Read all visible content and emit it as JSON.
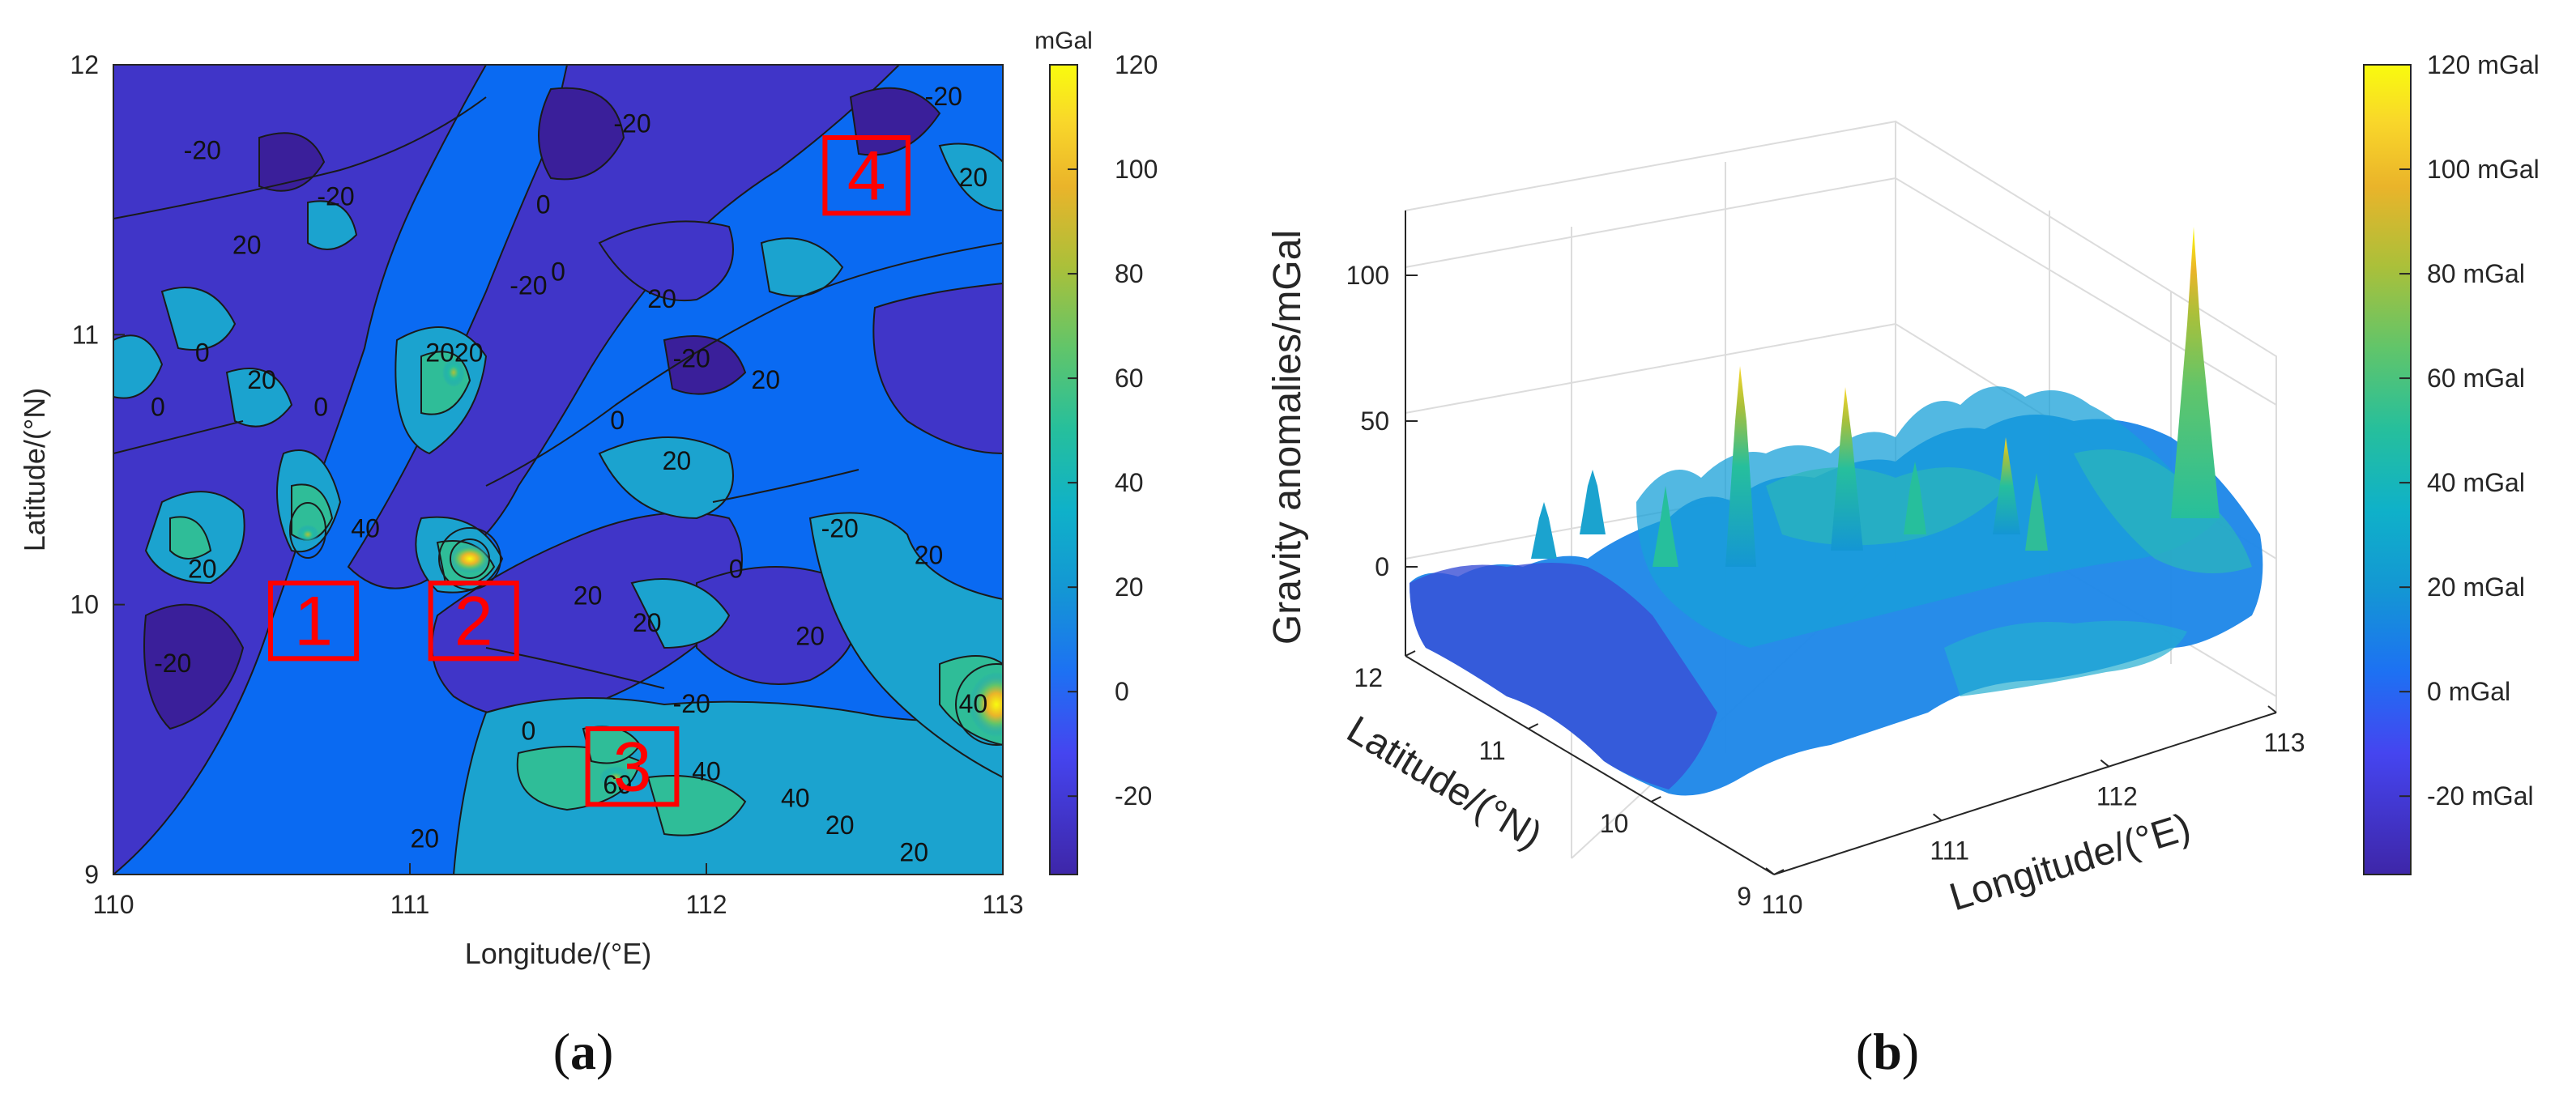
{
  "figure": {
    "caption_a": {
      "letter": "a"
    },
    "caption_b": {
      "letter": "b"
    }
  },
  "chart_data": [
    {
      "type": "heatmap",
      "subtype": "filled-contour",
      "xlabel": "Longitude/(°E)",
      "ylabel": "Latitude/(°N)",
      "xlim": [
        110,
        113
      ],
      "ylim": [
        9,
        12
      ],
      "xticks": [
        "110",
        "111",
        "112",
        "113"
      ],
      "yticks": [
        "9",
        "10",
        "11",
        "12"
      ],
      "colorbar": {
        "unit": "mGal",
        "ticks": [
          "-20",
          "0",
          "20",
          "40",
          "60",
          "80",
          "100",
          "120"
        ],
        "range": [
          -35,
          120
        ],
        "colormap": "parula"
      },
      "contour_labels": [
        {
          "lon": 110.3,
          "lat": 11.65,
          "value": "-20"
        },
        {
          "lon": 110.45,
          "lat": 11.3,
          "value": "20"
        },
        {
          "lon": 110.75,
          "lat": 11.48,
          "value": "-20"
        },
        {
          "lon": 110.3,
          "lat": 10.9,
          "value": "0"
        },
        {
          "lon": 110.5,
          "lat": 10.8,
          "value": "20"
        },
        {
          "lon": 110.7,
          "lat": 10.7,
          "value": "0"
        },
        {
          "lon": 110.15,
          "lat": 10.7,
          "value": "0"
        },
        {
          "lon": 110.85,
          "lat": 10.25,
          "value": "40"
        },
        {
          "lon": 110.3,
          "lat": 10.1,
          "value": "20"
        },
        {
          "lon": 110.2,
          "lat": 9.75,
          "value": "-20"
        },
        {
          "lon": 111.15,
          "lat": 10.9,
          "value": "2020"
        },
        {
          "lon": 111.4,
          "lat": 11.15,
          "value": "-20"
        },
        {
          "lon": 111.45,
          "lat": 11.45,
          "value": "0"
        },
        {
          "lon": 111.5,
          "lat": 11.2,
          "value": "0"
        },
        {
          "lon": 111.75,
          "lat": 11.75,
          "value": "-20"
        },
        {
          "lon": 111.85,
          "lat": 11.1,
          "value": "20"
        },
        {
          "lon": 111.95,
          "lat": 10.88,
          "value": "-20"
        },
        {
          "lon": 111.7,
          "lat": 10.65,
          "value": "0"
        },
        {
          "lon": 112.2,
          "lat": 10.8,
          "value": "20"
        },
        {
          "lon": 111.9,
          "lat": 10.5,
          "value": "20"
        },
        {
          "lon": 112.45,
          "lat": 10.25,
          "value": "-20"
        },
        {
          "lon": 112.1,
          "lat": 10.1,
          "value": "0"
        },
        {
          "lon": 112.35,
          "lat": 9.85,
          "value": "20"
        },
        {
          "lon": 111.6,
          "lat": 10.0,
          "value": "20"
        },
        {
          "lon": 111.95,
          "lat": 9.6,
          "value": "-20"
        },
        {
          "lon": 111.8,
          "lat": 9.9,
          "value": "20"
        },
        {
          "lon": 112.9,
          "lat": 9.6,
          "value": "40"
        },
        {
          "lon": 112.75,
          "lat": 10.15,
          "value": "20"
        },
        {
          "lon": 112.0,
          "lat": 9.35,
          "value": "40"
        },
        {
          "lon": 112.3,
          "lat": 9.25,
          "value": "40"
        },
        {
          "lon": 111.7,
          "lat": 9.3,
          "value": "60"
        },
        {
          "lon": 112.7,
          "lat": 9.05,
          "value": "20"
        },
        {
          "lon": 112.9,
          "lat": 11.55,
          "value": "20"
        },
        {
          "lon": 112.8,
          "lat": 11.85,
          "value": "-20"
        },
        {
          "lon": 111.05,
          "lat": 9.1,
          "value": "20"
        },
        {
          "lon": 111.4,
          "lat": 9.5,
          "value": "0"
        },
        {
          "lon": 112.45,
          "lat": 9.15,
          "value": "20"
        }
      ],
      "boxes": [
        {
          "label": "1",
          "lon": [
            110.53,
            110.82
          ],
          "lat": [
            9.8,
            10.08
          ]
        },
        {
          "label": "2",
          "lon": [
            111.07,
            111.36
          ],
          "lat": [
            9.8,
            10.08
          ]
        },
        {
          "label": "3",
          "lon": [
            111.6,
            111.9
          ],
          "lat": [
            9.26,
            9.54
          ]
        },
        {
          "label": "4",
          "lon": [
            112.4,
            112.68
          ],
          "lat": [
            11.45,
            11.73
          ]
        }
      ],
      "box_color": "#ff0000"
    },
    {
      "type": "surface3d",
      "xlabel": "Longitude/(°E)",
      "ylabel": "Latitude/(°N)",
      "zlabel": "Gravity anomalies/mGal",
      "xticks": [
        "110",
        "111",
        "112",
        "113"
      ],
      "yticks": [
        "9",
        "10",
        "11",
        "12"
      ],
      "zticks": [
        "0",
        "50",
        "100"
      ],
      "xlim": [
        110,
        113
      ],
      "ylim": [
        9,
        12
      ],
      "zlim": [
        -35,
        130
      ],
      "colorbar": {
        "ticks": [
          "120 mGal",
          "100 mGal",
          "80 mGal",
          "60 mGal",
          "40 mGal",
          "20 mGal",
          "0 mGal",
          "-20 mGal"
        ],
        "range": [
          -35,
          120
        ],
        "colormap": "parula"
      },
      "peaks": [
        {
          "lon": 112.9,
          "lat": 9.6,
          "z": 115
        },
        {
          "lon": 111.2,
          "lat": 10.05,
          "z": 65
        },
        {
          "lon": 110.8,
          "lat": 10.25,
          "z": 55
        },
        {
          "lon": 111.1,
          "lat": 10.95,
          "z": 45
        },
        {
          "lon": 111.7,
          "lat": 9.35,
          "z": 50
        },
        {
          "lon": 112.05,
          "lat": 9.25,
          "z": 42
        }
      ]
    }
  ]
}
